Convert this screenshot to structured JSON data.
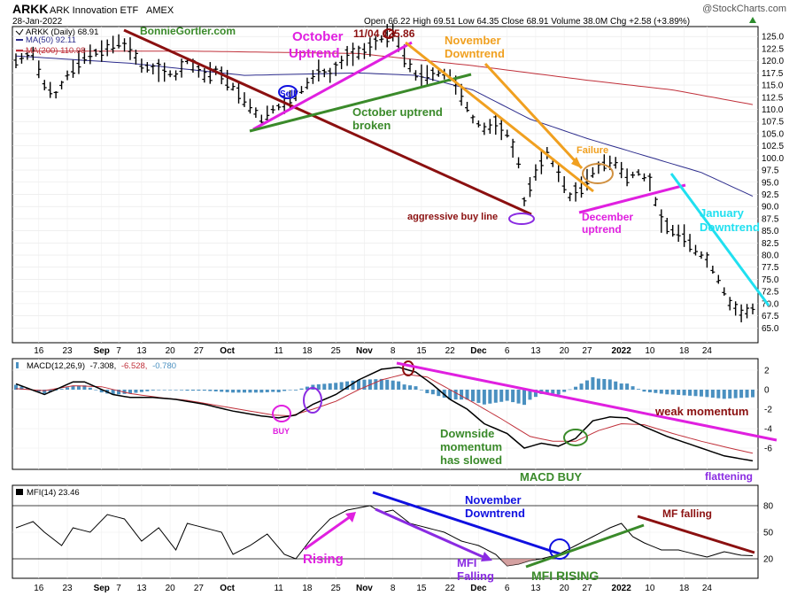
{
  "header": {
    "symbol": "ARKK",
    "name": "ARK Innovation ETF",
    "exchange": "AMEX",
    "date": "28-Jan-2022",
    "ohlc": "Open 66.22  High 69.51  Low 64.35  Close 68.91  Volume 38.0M  Chg +2.58 (+3.89%)",
    "watermark": "@StockCharts.com",
    "author": "BonnieGortler.com"
  },
  "price_legend": {
    "daily": "ARKK (Daily) 68.91",
    "ma50": "MA(50) 92.11",
    "ma200": "MA(200) 110.98"
  },
  "macd_legend": {
    "label": "MACD(12,26,9)",
    "v1": "-7.308,",
    "v2": "-6.528,",
    "v3": "-0.780"
  },
  "mfi_legend": "MFI(14) 23.46",
  "annotations": {
    "october_uptrend": "October\nUptrend",
    "peak": "11/04   125.86",
    "november_downtrend": "November\nDowntrend",
    "sell": "Sell",
    "oct_broken": "October uptrend\nbroken",
    "failure": "Failure",
    "aggressive": "aggressive buy line",
    "december_uptrend": "December\nuptrend",
    "january_downtrend": "January\nDowntrend",
    "buy": "BUY",
    "weak_momentum": "weak momentum",
    "downside": "Downside\nmomentum\nhas slowed",
    "macd_buy": "MACD BUY",
    "flattening": "flattening",
    "nov_downtrend_mfi": "November\nDowntrend",
    "mf_falling": "MF falling",
    "rising": "Rising",
    "mfi_falling": "MFI\nFalling",
    "mfi_rising": "MFI RISING"
  },
  "colors": {
    "price": "#000000",
    "ma50": "#2c2c8c",
    "ma200": "#c0303a",
    "hist": "#4a90c0",
    "magenta": "#e020e0",
    "darkred": "#8b1010",
    "green": "#3a8a2a",
    "orange": "#f0a020",
    "cyan": "#20e0f0",
    "purple": "#8a2be2",
    "blue": "#1010e0"
  },
  "chart_data": {
    "type": "line",
    "price_axis": {
      "min": 62.5,
      "max": 126.5,
      "ticks": [
        65.0,
        67.5,
        70.0,
        72.5,
        75.0,
        77.5,
        80.0,
        82.5,
        85.0,
        87.5,
        90.0,
        92.5,
        95.0,
        97.5,
        100.0,
        102.5,
        105.0,
        107.5,
        110.0,
        112.5,
        115.0,
        117.5,
        120.0,
        122.5,
        125.0
      ]
    },
    "macd_axis": {
      "min": -8.0,
      "max": 3.0,
      "ticks": [
        "2",
        "0",
        "-2",
        "-4",
        "-6"
      ]
    },
    "mfi_axis": {
      "min": 0,
      "max": 100,
      "ticks": [
        "80",
        "50",
        "20"
      ],
      "lines": [
        80,
        20
      ]
    },
    "x_labels": [
      "16",
      "23",
      "Sep",
      "7",
      "13",
      "20",
      "27",
      "Oct",
      "11",
      "18",
      "25",
      "Nov",
      "8",
      "15",
      "22",
      "Dec",
      "6",
      "13",
      "20",
      "27",
      "2022",
      "10",
      "18",
      "24"
    ],
    "x_bold": [
      "Sep",
      "Oct",
      "Nov",
      "Dec",
      "2022"
    ],
    "x_label_days": [
      4,
      9,
      15,
      18,
      22,
      27,
      32,
      37,
      46,
      51,
      56,
      61,
      66,
      71,
      76,
      81,
      86,
      91,
      96,
      100,
      106,
      111,
      117,
      121
    ],
    "n_days": 130,
    "price_anchors": [
      [
        0,
        120
      ],
      [
        3,
        121.5
      ],
      [
        5,
        115
      ],
      [
        7,
        113
      ],
      [
        9,
        117
      ],
      [
        12,
        121
      ],
      [
        15,
        122
      ],
      [
        18,
        124
      ],
      [
        20,
        122.5
      ],
      [
        22,
        119
      ],
      [
        25,
        118
      ],
      [
        28,
        117
      ],
      [
        30,
        120
      ],
      [
        33,
        117
      ],
      [
        35,
        118
      ],
      [
        37,
        116
      ],
      [
        40,
        112
      ],
      [
        43,
        108
      ],
      [
        45,
        110
      ],
      [
        47,
        111
      ],
      [
        50,
        114
      ],
      [
        53,
        118
      ],
      [
        55,
        117
      ],
      [
        58,
        121
      ],
      [
        61,
        122
      ],
      [
        64,
        124.5
      ],
      [
        66,
        125.86
      ],
      [
        68,
        121
      ],
      [
        70,
        117
      ],
      [
        72,
        117
      ],
      [
        74,
        117.5
      ],
      [
        76,
        117
      ],
      [
        78,
        113
      ],
      [
        80,
        108
      ],
      [
        82,
        106
      ],
      [
        84,
        107
      ],
      [
        86,
        105
      ],
      [
        88,
        99
      ],
      [
        89,
        91
      ],
      [
        91,
        97
      ],
      [
        93,
        101
      ],
      [
        95,
        97
      ],
      [
        97,
        92
      ],
      [
        99,
        94
      ],
      [
        101,
        97
      ],
      [
        103,
        99
      ],
      [
        105,
        99
      ],
      [
        107,
        96
      ],
      [
        109,
        97
      ],
      [
        111,
        95
      ],
      [
        113,
        87
      ],
      [
        115,
        85
      ],
      [
        117,
        84
      ],
      [
        119,
        81
      ],
      [
        121,
        79
      ],
      [
        123,
        75
      ],
      [
        125,
        70
      ],
      [
        127,
        68
      ],
      [
        129,
        68.91
      ]
    ],
    "ma50_anchors": [
      [
        0,
        121
      ],
      [
        20,
        119.5
      ],
      [
        40,
        117
      ],
      [
        60,
        117.5
      ],
      [
        70,
        117
      ],
      [
        80,
        114
      ],
      [
        90,
        108
      ],
      [
        100,
        104
      ],
      [
        110,
        100.5
      ],
      [
        120,
        97
      ],
      [
        129,
        92.11
      ]
    ],
    "ma200_anchors": [
      [
        0,
        122
      ],
      [
        30,
        122
      ],
      [
        60,
        121.5
      ],
      [
        80,
        119
      ],
      [
        100,
        116
      ],
      [
        115,
        114
      ],
      [
        129,
        110.98
      ]
    ],
    "macd_anchors": [
      [
        0,
        0.6
      ],
      [
        5,
        -0.5
      ],
      [
        10,
        0.8
      ],
      [
        12,
        0.8
      ],
      [
        17,
        -0.5
      ],
      [
        20,
        -0.8
      ],
      [
        24,
        -0.8
      ],
      [
        28,
        -1.0
      ],
      [
        33,
        -1.5
      ],
      [
        38,
        -2.2
      ],
      [
        43,
        -2.7
      ],
      [
        46,
        -2.9
      ],
      [
        49,
        -2.6
      ],
      [
        52,
        -1.5
      ],
      [
        56,
        -0.5
      ],
      [
        60,
        1.0
      ],
      [
        64,
        2.1
      ],
      [
        67,
        2.3
      ],
      [
        70,
        1.8
      ],
      [
        73,
        0.5
      ],
      [
        76,
        -1.0
      ],
      [
        79,
        -2.0
      ],
      [
        82,
        -3.5
      ],
      [
        86,
        -4.5
      ],
      [
        89,
        -6.0
      ],
      [
        92,
        -5.5
      ],
      [
        95,
        -5.8
      ],
      [
        98,
        -5.0
      ],
      [
        101,
        -3.2
      ],
      [
        104,
        -2.8
      ],
      [
        107,
        -2.9
      ],
      [
        110,
        -3.8
      ],
      [
        114,
        -4.8
      ],
      [
        119,
        -5.8
      ],
      [
        124,
        -6.8
      ],
      [
        129,
        -7.308
      ]
    ],
    "signal_anchors": [
      [
        0,
        0.1
      ],
      [
        5,
        -0.1
      ],
      [
        10,
        0.4
      ],
      [
        15,
        0.3
      ],
      [
        20,
        -0.4
      ],
      [
        25,
        -0.8
      ],
      [
        30,
        -1.1
      ],
      [
        35,
        -1.6
      ],
      [
        40,
        -2.1
      ],
      [
        45,
        -2.6
      ],
      [
        48,
        -2.7
      ],
      [
        52,
        -2.0
      ],
      [
        56,
        -1.2
      ],
      [
        60,
        0.0
      ],
      [
        64,
        1.0
      ],
      [
        68,
        1.6
      ],
      [
        72,
        1.3
      ],
      [
        76,
        0.0
      ],
      [
        80,
        -1.3
      ],
      [
        85,
        -3.0
      ],
      [
        90,
        -4.8
      ],
      [
        94,
        -5.3
      ],
      [
        98,
        -5.3
      ],
      [
        102,
        -4.2
      ],
      [
        106,
        -3.5
      ],
      [
        110,
        -3.6
      ],
      [
        115,
        -4.5
      ],
      [
        120,
        -5.3
      ],
      [
        125,
        -6.0
      ],
      [
        129,
        -6.528
      ]
    ],
    "mfi_anchors": [
      [
        0,
        55
      ],
      [
        3,
        62
      ],
      [
        5,
        50
      ],
      [
        8,
        35
      ],
      [
        10,
        55
      ],
      [
        13,
        50
      ],
      [
        16,
        70
      ],
      [
        19,
        65
      ],
      [
        22,
        40
      ],
      [
        25,
        55
      ],
      [
        28,
        30
      ],
      [
        30,
        60
      ],
      [
        33,
        55
      ],
      [
        36,
        50
      ],
      [
        38,
        25
      ],
      [
        41,
        35
      ],
      [
        44,
        48
      ],
      [
        47,
        25
      ],
      [
        49,
        20
      ],
      [
        52,
        45
      ],
      [
        55,
        65
      ],
      [
        58,
        75
      ],
      [
        62,
        80
      ],
      [
        64,
        72
      ],
      [
        66,
        75
      ],
      [
        69,
        60
      ],
      [
        72,
        55
      ],
      [
        75,
        50
      ],
      [
        78,
        40
      ],
      [
        81,
        35
      ],
      [
        84,
        25
      ],
      [
        86,
        12
      ],
      [
        88,
        14
      ],
      [
        90,
        18
      ],
      [
        92,
        20
      ],
      [
        95,
        25
      ],
      [
        98,
        35
      ],
      [
        101,
        45
      ],
      [
        104,
        55
      ],
      [
        106,
        60
      ],
      [
        108,
        45
      ],
      [
        110,
        38
      ],
      [
        113,
        30
      ],
      [
        116,
        30
      ],
      [
        119,
        25
      ],
      [
        121,
        22
      ],
      [
        124,
        28
      ],
      [
        127,
        24
      ],
      [
        129,
        23.46
      ]
    ]
  }
}
